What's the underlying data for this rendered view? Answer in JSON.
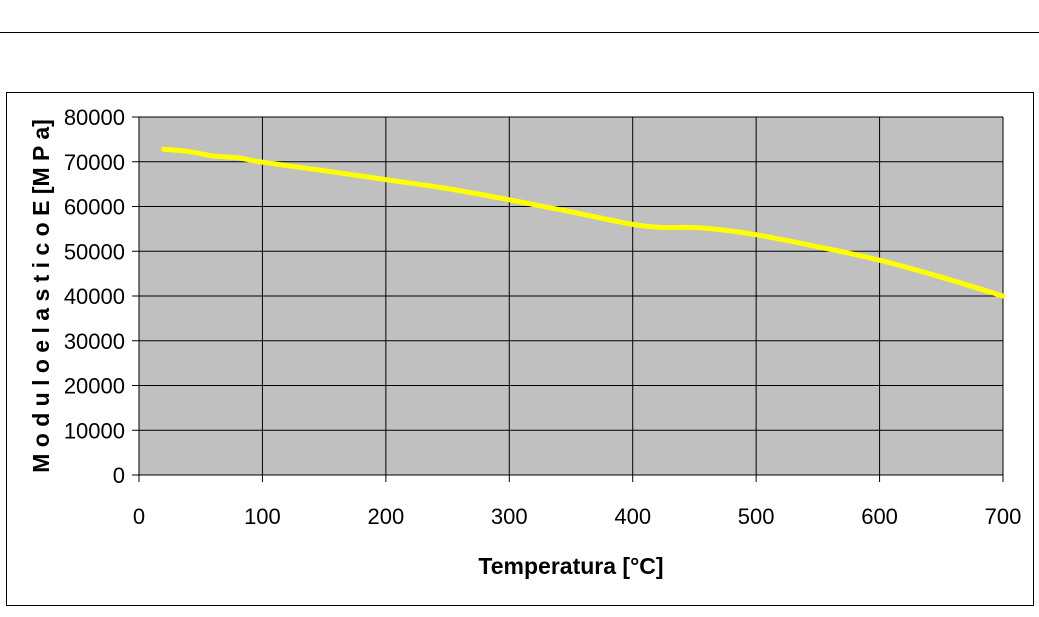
{
  "chart_data": {
    "type": "line",
    "title": "",
    "xlabel": "Temperatura [°C]",
    "ylabel": "M o d u l o  e l a s t i c o  E  [M P a]",
    "xlim": [
      0,
      700
    ],
    "ylim": [
      0,
      80000
    ],
    "x_ticks": [
      "0",
      "100",
      "200",
      "300",
      "400",
      "500",
      "600",
      "700"
    ],
    "y_ticks": [
      "0",
      "10000",
      "20000",
      "30000",
      "40000",
      "50000",
      "60000",
      "70000",
      "80000"
    ],
    "grid": true,
    "legend": "none",
    "colors": {
      "plot_background": "#c0c0c0",
      "line": "#ffff00",
      "grid": "#000000"
    },
    "series": [
      {
        "x": [
          20,
          40,
          60,
          80,
          100,
          150,
          200,
          250,
          300,
          350,
          400,
          425,
          450,
          475,
          500,
          550,
          600,
          650,
          700
        ],
        "values": [
          72800,
          72300,
          71300,
          70900,
          69900,
          68000,
          66000,
          64000,
          61500,
          58800,
          56000,
          55300,
          55300,
          54700,
          53700,
          51000,
          48000,
          44200,
          40000
        ]
      }
    ]
  }
}
